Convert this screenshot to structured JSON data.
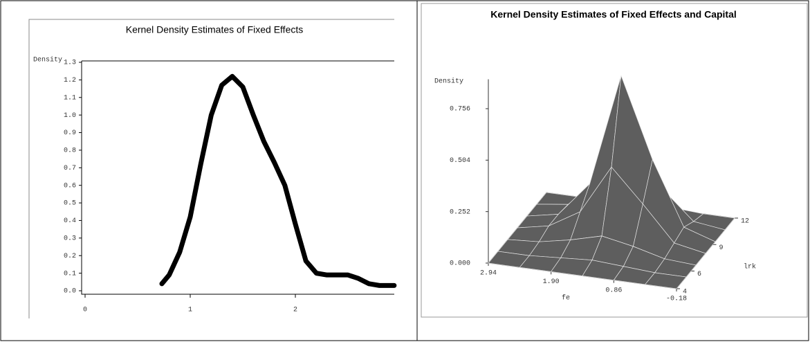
{
  "chart_data": [
    {
      "type": "line",
      "title": "Kernel Density Estimates of Fixed Effects",
      "ylabel": "Density",
      "x": [
        0.73,
        0.8,
        0.9,
        1.0,
        1.1,
        1.2,
        1.3,
        1.4,
        1.5,
        1.6,
        1.7,
        1.8,
        1.9,
        2.0,
        2.1,
        2.2,
        2.3,
        2.4,
        2.5,
        2.6,
        2.7,
        2.8,
        2.94
      ],
      "values": [
        0.04,
        0.09,
        0.22,
        0.42,
        0.72,
        1.0,
        1.17,
        1.22,
        1.16,
        1.0,
        0.85,
        0.73,
        0.6,
        0.38,
        0.17,
        0.1,
        0.09,
        0.09,
        0.09,
        0.07,
        0.04,
        0.03,
        0.03
      ],
      "color": "#000000",
      "xlim": [
        0,
        2.94
      ],
      "xticks": [
        0,
        1,
        2
      ],
      "ylim": [
        0,
        1.3
      ],
      "yticks": [
        {
          "value": 0,
          "label": "0.0"
        },
        {
          "value": 0.1,
          "label": "0.1"
        },
        {
          "value": 0.2,
          "label": "0.2"
        },
        {
          "value": 0.3,
          "label": "0.3"
        },
        {
          "value": 0.4,
          "label": "0.4"
        },
        {
          "value": 0.5,
          "label": "0.5"
        },
        {
          "value": 0.6,
          "label": "0.6"
        },
        {
          "value": 0.7,
          "label": "0.7"
        },
        {
          "value": 0.8,
          "label": "0.8"
        },
        {
          "value": 0.9,
          "label": "0.9"
        },
        {
          "value": 1.0,
          "label": "1.0"
        },
        {
          "value": 1.1,
          "label": "1.1"
        },
        {
          "value": 1.2,
          "label": "1.2"
        },
        {
          "value": 1.3,
          "label": "1.3"
        }
      ]
    },
    {
      "type": "surface3d",
      "title": "Kernel Density Estimates of Fixed Effects and Capital",
      "zlabel": "Density",
      "xlabel": "fe",
      "ylabel": "lrk",
      "x": [
        2.94,
        2.42,
        1.9,
        1.38,
        0.86,
        0.34,
        -0.18
      ],
      "y": [
        4,
        5.33,
        6.67,
        8,
        9.33,
        10.67,
        12
      ],
      "z": [
        [
          0,
          0,
          0,
          0,
          0,
          0,
          0
        ],
        [
          0,
          0,
          0.01,
          0.03,
          0.03,
          0.02,
          0
        ],
        [
          0,
          0.01,
          0.04,
          0.12,
          0.2,
          0.08,
          0.01
        ],
        [
          0,
          0.02,
          0.08,
          0.36,
          0.75,
          0.32,
          0.02
        ],
        [
          0,
          0.01,
          0.05,
          0.2,
          0.36,
          0.16,
          0.01
        ],
        [
          0,
          0,
          0.01,
          0.03,
          0.05,
          0.02,
          0
        ],
        [
          0,
          0,
          0,
          0,
          0,
          0,
          0
        ]
      ],
      "xlim": [
        2.94,
        -0.18
      ],
      "xticks": [
        2.94,
        {
          "value": 1.9,
          "label": "1.90"
        },
        0.86,
        -0.18
      ],
      "ylim": [
        4,
        12
      ],
      "yticks": [
        4,
        6,
        9,
        12
      ],
      "zlim": [
        0,
        0.9
      ],
      "zticks": [
        {
          "value": 0,
          "label": "0.000"
        },
        {
          "value": 0.252,
          "label": "0.252"
        },
        {
          "value": 0.504,
          "label": "0.504"
        },
        {
          "value": 0.756,
          "label": "0.756"
        }
      ]
    }
  ]
}
